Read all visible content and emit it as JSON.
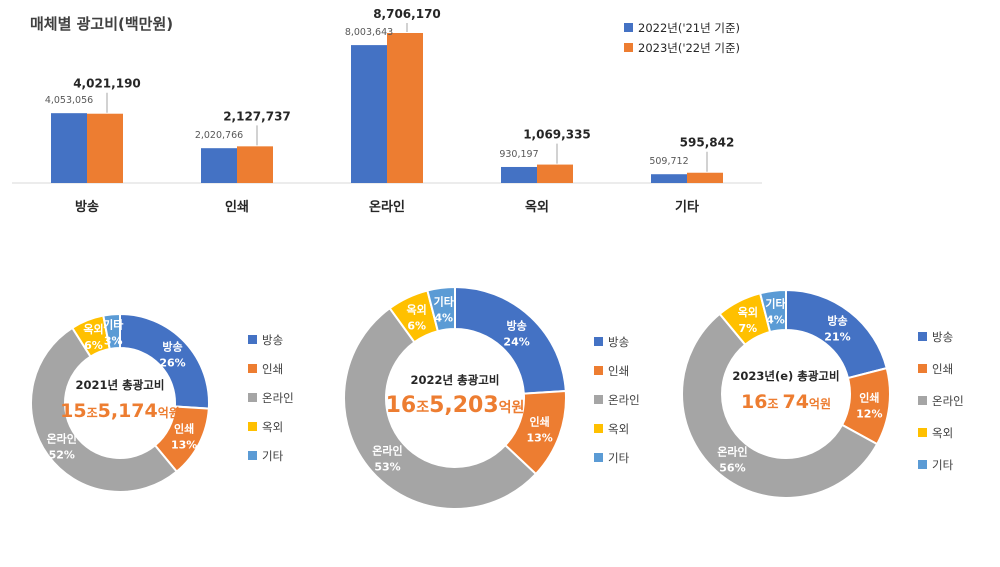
{
  "chart_data": [
    {
      "type": "bar",
      "title": "매체별 광고비(백만원)",
      "categories": [
        "방송",
        "인쇄",
        "온라인",
        "옥외",
        "기타"
      ],
      "series": [
        {
          "name": "2022년('21년 기준)",
          "color": "#4472C4",
          "values": [
            4053056,
            2020766,
            8003643,
            930197,
            509712
          ],
          "labels": [
            "4,053,056",
            "2,020,766",
            "8,003,643",
            "930,197",
            "509,712"
          ]
        },
        {
          "name": "2023년('22년 기준)",
          "color": "#ED7D31",
          "values": [
            4021190,
            2127737,
            8706170,
            1069335,
            595842
          ],
          "labels": [
            "4,021,190",
            "2,127,737",
            "8,706,170",
            "1,069,335",
            "595,842"
          ]
        }
      ],
      "ylim": [
        0,
        8706170
      ],
      "grid": false,
      "legend": "top-right"
    },
    {
      "type": "pie",
      "center_title": "2021년 총광고비",
      "center_total": {
        "big1": "15",
        "unit1": "조",
        "big2": "5,174",
        "unit2": "억원"
      },
      "slices": [
        {
          "label": "방송",
          "value": 26,
          "pct": "26%",
          "color": "#4472C4"
        },
        {
          "label": "인쇄",
          "value": 13,
          "pct": "13%",
          "color": "#ED7D31"
        },
        {
          "label": "온라인",
          "value": 52,
          "pct": "52%",
          "color": "#A5A5A5"
        },
        {
          "label": "옥외",
          "value": 6,
          "pct": "6%",
          "color": "#FFC000"
        },
        {
          "label": "기타",
          "value": 3,
          "pct": "3%",
          "color": "#5B9BD5"
        }
      ],
      "legend": "right"
    },
    {
      "type": "pie",
      "center_title": "2022년 총광고비",
      "center_total": {
        "big1": "16",
        "unit1": "조",
        "big2": "5,203",
        "unit2": "억원"
      },
      "slices": [
        {
          "label": "방송",
          "value": 24,
          "pct": "24%",
          "color": "#4472C4"
        },
        {
          "label": "인쇄",
          "value": 13,
          "pct": "13%",
          "color": "#ED7D31"
        },
        {
          "label": "온라인",
          "value": 53,
          "pct": "53%",
          "color": "#A5A5A5"
        },
        {
          "label": "옥외",
          "value": 6,
          "pct": "6%",
          "color": "#FFC000"
        },
        {
          "label": "기타",
          "value": 4,
          "pct": "4%",
          "color": "#5B9BD5"
        }
      ],
      "legend": "right"
    },
    {
      "type": "pie",
      "center_title": "2023년(e) 총광고비",
      "center_total": {
        "big1": "16",
        "unit1": "조",
        "big2": "74",
        "unit2": "억원"
      },
      "slices": [
        {
          "label": "방송",
          "value": 21,
          "pct": "21%",
          "color": "#4472C4"
        },
        {
          "label": "인쇄",
          "value": 12,
          "pct": "12%",
          "color": "#ED7D31"
        },
        {
          "label": "온라인",
          "value": 56,
          "pct": "56%",
          "color": "#A5A5A5"
        },
        {
          "label": "옥외",
          "value": 7,
          "pct": "7%",
          "color": "#FFC000"
        },
        {
          "label": "기타",
          "value": 4,
          "pct": "4%",
          "color": "#5B9BD5"
        }
      ],
      "legend": "right"
    }
  ],
  "colors": {
    "accent_total": "#ED7D31",
    "text": "#404040",
    "label_white": "#ffffff"
  }
}
